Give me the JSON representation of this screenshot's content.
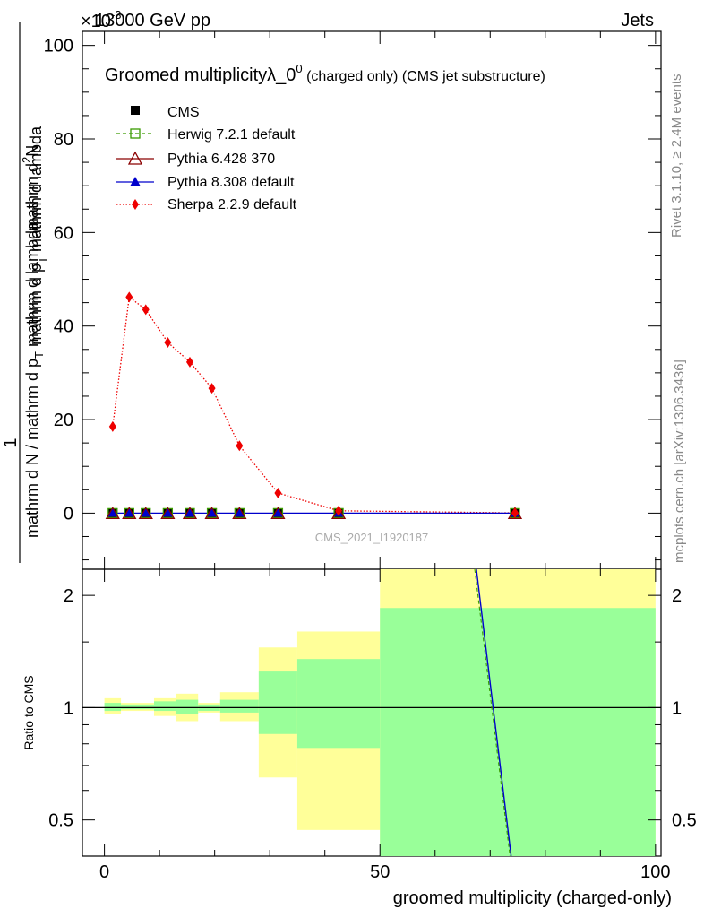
{
  "header": {
    "beam": "13000 GeV pp",
    "process": "Jets",
    "exponent": "×10",
    "exponent_power": "-3",
    "watermark": "CMS_2021_I1920187",
    "rivet": "Rivet 3.1.10, ≥ 2.4M events",
    "mcplots": "mcplots.cern.ch [arXiv:1306.3436]"
  },
  "colors": {
    "cms": "#000000",
    "herwig": "#3a9b00",
    "pythia6": "#8b0000",
    "pythia8": "#0000cc",
    "sherpa": "#ee0000",
    "band_outer": "#ffff99",
    "band_inner": "#99ff99"
  },
  "chart_data": [
    {
      "type": "line",
      "title_main": "Groomed multiplicityλ_0",
      "title_sup": "0",
      "title_rest": " (charged only) (CMS jet substructure)",
      "ylabel_top": "1",
      "ylabel_den": "mathrm d N / mathrm d p",
      "ylabel_den_sub": "T",
      "ylabel_den2": " mathrm d lambda",
      "ylabel_num": "mathrm d",
      "ylabel_num_sup": "2",
      "ylabel_num2": "N",
      "ylabel_full_b": "mathrm d p",
      "ylabel_full_b_sub": "T",
      "ylabel_full_b2": " mathrm d lambda",
      "ylim": [
        -12,
        103
      ],
      "yticks": [
        "0",
        "20",
        "40",
        "60",
        "80",
        "100"
      ],
      "ytick_values": [
        0,
        20,
        40,
        60,
        80,
        100
      ],
      "x": [
        1.5,
        4.5,
        7.5,
        11.5,
        15.5,
        19.5,
        24.5,
        31.5,
        42.5,
        74.5
      ],
      "series": [
        {
          "name": "CMS",
          "values": [
            0,
            0,
            0,
            0,
            0,
            0,
            0,
            0,
            0,
            0
          ]
        },
        {
          "name": "Herwig 7.2.1 default",
          "values": [
            0,
            0,
            0,
            0,
            0,
            0,
            0,
            0,
            0,
            0
          ]
        },
        {
          "name": "Pythia 6.428 370",
          "values": [
            0,
            0,
            0,
            0,
            0,
            0,
            0,
            0,
            0,
            0
          ]
        },
        {
          "name": "Pythia 8.308 default",
          "values": [
            0,
            0,
            0,
            0,
            0,
            0,
            0,
            0,
            0,
            0
          ]
        },
        {
          "name": "Sherpa 2.2.9 default",
          "values": [
            18.5,
            46.2,
            43.5,
            36.5,
            32.3,
            26.7,
            14.4,
            4.3,
            0.5,
            0.05
          ]
        }
      ]
    },
    {
      "type": "area",
      "ylabel": "Ratio to CMS",
      "xlabel": "groomed multiplicity (charged-only)",
      "xlim": [
        -4,
        101
      ],
      "ylim": [
        0.4,
        2.35
      ],
      "xticks": [
        "0",
        "50",
        "100"
      ],
      "xtick_values": [
        0,
        50,
        100
      ],
      "yticks": [
        "0.5",
        "1",
        "2"
      ],
      "ytick_values": [
        0.5,
        1,
        2
      ],
      "bins": [
        [
          0,
          3
        ],
        [
          3,
          6
        ],
        [
          6,
          9
        ],
        [
          9,
          13
        ],
        [
          13,
          17
        ],
        [
          17,
          21
        ],
        [
          21,
          28
        ],
        [
          28,
          35
        ],
        [
          35,
          50
        ],
        [
          50,
          100
        ]
      ],
      "band_inner": [
        [
          0.98,
          1.03
        ],
        [
          0.99,
          1.02
        ],
        [
          0.99,
          1.02
        ],
        [
          0.98,
          1.04
        ],
        [
          0.96,
          1.05
        ],
        [
          0.98,
          1.02
        ],
        [
          0.97,
          1.05
        ],
        [
          0.85,
          1.25
        ],
        [
          0.78,
          1.35
        ],
        [
          0.4,
          1.85
        ]
      ],
      "band_outer": [
        [
          0.96,
          1.06
        ],
        [
          0.98,
          1.03
        ],
        [
          0.98,
          1.03
        ],
        [
          0.95,
          1.06
        ],
        [
          0.92,
          1.09
        ],
        [
          0.97,
          1.03
        ],
        [
          0.92,
          1.1
        ],
        [
          0.65,
          1.45
        ],
        [
          0.47,
          1.6
        ],
        [
          0.4,
          2.35
        ]
      ],
      "ratio_lines": [
        {
          "name": "Pythia 8.308 default",
          "x": [
            67.5,
            73.8
          ],
          "y": [
            2.35,
            0.4
          ]
        },
        {
          "name": "Herwig 7.2.1 default",
          "x": [
            67.2,
            73.6
          ],
          "y": [
            2.35,
            0.4
          ]
        }
      ]
    }
  ]
}
